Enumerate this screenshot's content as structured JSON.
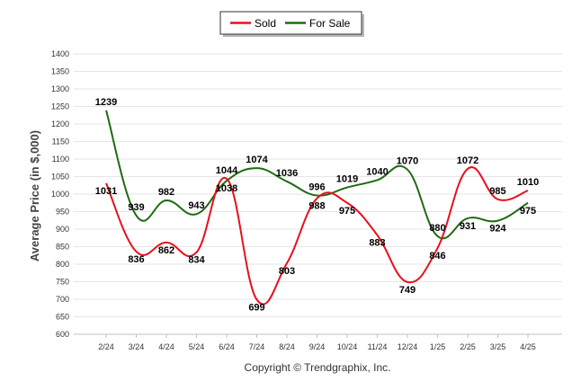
{
  "chart_data": {
    "type": "line",
    "categories": [
      "2/24",
      "3/24",
      "4/24",
      "5/24",
      "6/24",
      "7/24",
      "8/24",
      "9/24",
      "10/24",
      "11/24",
      "12/24",
      "1/25",
      "2/25",
      "3/25",
      "4/25"
    ],
    "series": [
      {
        "name": "Sold",
        "color": "#e8101c",
        "values": [
          1031,
          836,
          862,
          834,
          1044,
          699,
          803,
          988,
          975,
          883,
          749,
          846,
          1072,
          985,
          1010
        ]
      },
      {
        "name": "For Sale",
        "color": "#1e6b12",
        "values": [
          1239,
          939,
          982,
          943,
          1038,
          1074,
          1036,
          996,
          1019,
          1040,
          1070,
          880,
          931,
          924,
          975
        ]
      }
    ],
    "ylabel": "Average Price (in $,000)",
    "ylim": [
      600,
      1400
    ],
    "yticks": [
      600,
      650,
      700,
      750,
      800,
      850,
      900,
      950,
      1000,
      1050,
      1100,
      1150,
      1200,
      1250,
      1300,
      1350,
      1400
    ],
    "grid": true,
    "legend_position": "top-center",
    "footer": "Copyright © Trendgraphix, Inc."
  }
}
